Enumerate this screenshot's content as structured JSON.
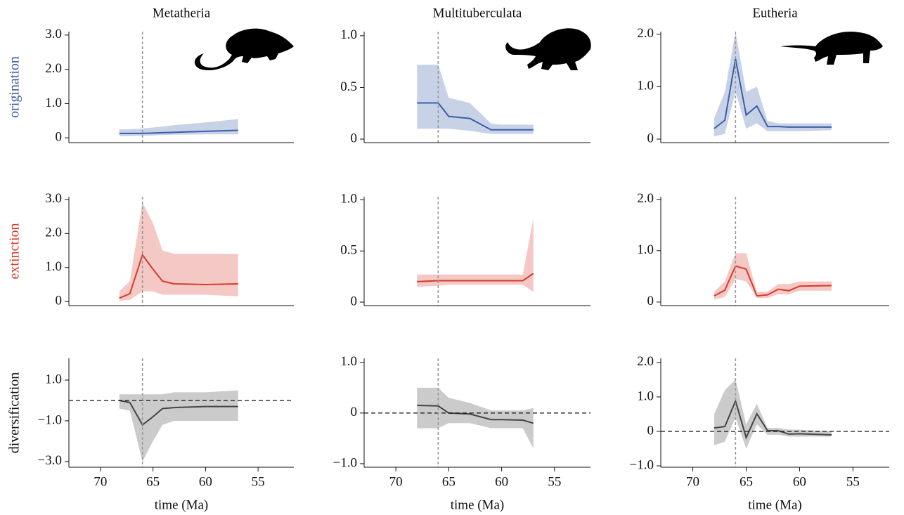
{
  "chart_data": [
    {
      "type": "line",
      "title": "Metatheria",
      "ylabel": "origination",
      "color": "#3b5ea8",
      "x": [
        68.2,
        67.2,
        66.0,
        65.0,
        64.1,
        63.0,
        60.0,
        56.9
      ],
      "values": [
        0.13,
        0.13,
        0.13,
        0.14,
        0.15,
        0.16,
        0.19,
        0.22
      ],
      "lower": [
        0.05,
        0.05,
        0.06,
        0.07,
        0.08,
        0.09,
        0.1,
        0.1
      ],
      "upper": [
        0.25,
        0.25,
        0.27,
        0.3,
        0.33,
        0.37,
        0.45,
        0.55
      ],
      "xlim": [
        73,
        51.6
      ],
      "ylim": [
        -0.14,
        3.1
      ],
      "yticks": [
        0,
        {
          "value": 1,
          "label": "1.0"
        },
        {
          "value": 2,
          "label": "2.0"
        },
        {
          "value": 3,
          "label": "3.0"
        }
      ],
      "vline": 66
    },
    {
      "type": "line",
      "title": "Multituberculata",
      "color": "#3b5ea8",
      "x": [
        68,
        66,
        65,
        63,
        61,
        60,
        58,
        57
      ],
      "values": [
        0.35,
        0.35,
        0.22,
        0.2,
        0.09,
        0.09,
        0.09,
        0.09
      ],
      "lower": [
        0.1,
        0.1,
        0.1,
        0.08,
        0.05,
        0.05,
        0.05,
        0.05
      ],
      "upper": [
        0.72,
        0.72,
        0.4,
        0.35,
        0.15,
        0.14,
        0.14,
        0.14
      ],
      "xlim": [
        73,
        51.6
      ],
      "ylim": [
        -0.034,
        1.04
      ],
      "yticks": [
        0,
        0.5,
        {
          "value": 1,
          "label": "1.0"
        }
      ],
      "vline": 66
    },
    {
      "type": "line",
      "title": "Eutheria",
      "color": "#3b5ea8",
      "x": [
        68,
        67,
        66,
        65,
        64,
        63,
        62,
        61,
        60,
        57
      ],
      "values": [
        0.2,
        0.36,
        1.53,
        0.46,
        0.63,
        0.24,
        0.24,
        0.23,
        0.23,
        0.23
      ],
      "lower": [
        0.05,
        0.1,
        0.9,
        0.2,
        0.3,
        0.15,
        0.15,
        0.15,
        0.15,
        0.17
      ],
      "upper": [
        0.4,
        0.9,
        2.05,
        0.9,
        1.0,
        0.35,
        0.3,
        0.3,
        0.3,
        0.3
      ],
      "xlim": [
        73,
        51.6
      ],
      "ylim": [
        -0.067,
        2.05
      ],
      "yticks": [
        0,
        {
          "value": 1,
          "label": "1.0"
        },
        {
          "value": 2,
          "label": "2.0"
        }
      ],
      "vline": 66
    },
    {
      "type": "line",
      "ylabel": "extinction",
      "color": "#d73a2a",
      "x": [
        68.2,
        67.2,
        66.0,
        65.0,
        64.1,
        63.0,
        60.0,
        56.9
      ],
      "values": [
        0.1,
        0.23,
        1.37,
        0.95,
        0.6,
        0.52,
        0.5,
        0.52
      ],
      "lower": [
        0.02,
        0.05,
        0.3,
        0.3,
        0.2,
        0.2,
        0.2,
        0.15
      ],
      "upper": [
        0.3,
        0.6,
        2.9,
        2.3,
        1.5,
        1.4,
        1.4,
        1.4
      ],
      "xlim": [
        73,
        51.6
      ],
      "ylim": [
        -0.12,
        3.08
      ],
      "yticks": [
        0,
        {
          "value": 1,
          "label": "1.0"
        },
        {
          "value": 2,
          "label": "2.0"
        },
        {
          "value": 3,
          "label": "3.0"
        }
      ],
      "vline": 66
    },
    {
      "type": "line",
      "color": "#d73a2a",
      "x": [
        68,
        66,
        65,
        63,
        61,
        60,
        58,
        57
      ],
      "values": [
        0.2,
        0.21,
        0.21,
        0.21,
        0.21,
        0.21,
        0.21,
        0.28
      ],
      "lower": [
        0.15,
        0.16,
        0.17,
        0.17,
        0.17,
        0.17,
        0.17,
        0.1
      ],
      "upper": [
        0.27,
        0.27,
        0.27,
        0.27,
        0.27,
        0.27,
        0.27,
        0.82
      ],
      "xlim": [
        73,
        51.6
      ],
      "ylim": [
        -0.034,
        1.03
      ],
      "yticks": [
        0,
        0.5,
        {
          "value": 1,
          "label": "1.0"
        }
      ],
      "vline": 66
    },
    {
      "type": "line",
      "color": "#d73a2a",
      "x": [
        68,
        67,
        66,
        65,
        64,
        63,
        62,
        61,
        60,
        57
      ],
      "values": [
        0.12,
        0.23,
        0.7,
        0.64,
        0.12,
        0.14,
        0.25,
        0.22,
        0.31,
        0.32
      ],
      "lower": [
        0.05,
        0.1,
        0.45,
        0.4,
        0.08,
        0.08,
        0.15,
        0.15,
        0.22,
        0.22
      ],
      "upper": [
        0.2,
        0.4,
        0.95,
        0.95,
        0.2,
        0.2,
        0.35,
        0.35,
        0.4,
        0.4
      ],
      "xlim": [
        73,
        51.6
      ],
      "ylim": [
        -0.07,
        2.05
      ],
      "yticks": [
        0,
        {
          "value": 1,
          "label": "1.0"
        },
        {
          "value": 2,
          "label": "2.0"
        }
      ],
      "vline": 66
    },
    {
      "type": "line",
      "ylabel": "diversification",
      "xlabel": "time (Ma)",
      "color": "#444444",
      "x": [
        68.2,
        67.2,
        66.0,
        65.0,
        64.1,
        63.0,
        60.0,
        56.9
      ],
      "values": [
        0,
        -0.1,
        -1.2,
        -0.8,
        -0.4,
        -0.35,
        -0.3,
        -0.3
      ],
      "lower": [
        -0.4,
        -0.5,
        -3.0,
        -2.0,
        -1.2,
        -1.0,
        -1.0,
        -1.0
      ],
      "upper": [
        0.3,
        0.3,
        0.3,
        0.3,
        0.3,
        0.4,
        0.4,
        0.5
      ],
      "xlim": [
        73,
        51.6
      ],
      "ylim": [
        -3.28,
        2.07
      ],
      "xticks": [
        70,
        65,
        60,
        55
      ],
      "yticks": [
        {
          "value": 1,
          "label": "1.0"
        },
        {
          "value": -1,
          "label": "−1.0"
        },
        {
          "value": -3,
          "label": "−3.0"
        }
      ],
      "vline": 66,
      "hline": 0
    },
    {
      "type": "line",
      "xlabel": "time (Ma)",
      "color": "#444444",
      "x": [
        68,
        66,
        65,
        63,
        61,
        60,
        58,
        57
      ],
      "values": [
        0.15,
        0.14,
        0,
        -0.02,
        -0.13,
        -0.13,
        -0.14,
        -0.2
      ],
      "lower": [
        -0.3,
        -0.3,
        -0.2,
        -0.2,
        -0.3,
        -0.3,
        -0.3,
        -0.7
      ],
      "upper": [
        0.5,
        0.5,
        0.3,
        0.2,
        0.05,
        0.05,
        0.05,
        0.1
      ],
      "xlim": [
        73,
        51.6
      ],
      "ylim": [
        -1.07,
        1.08
      ],
      "xticks": [
        70,
        65,
        60,
        55
      ],
      "yticks": [
        {
          "value": -1,
          "label": "−1.0"
        },
        0,
        {
          "value": 1,
          "label": "1.0"
        }
      ],
      "vline": 66,
      "hline": 0
    },
    {
      "type": "line",
      "xlabel": "time (Ma)",
      "color": "#444444",
      "x": [
        68,
        67,
        66,
        65,
        64,
        63,
        62,
        61,
        60,
        57
      ],
      "values": [
        0.1,
        0.14,
        0.88,
        -0.18,
        0.51,
        0.02,
        0.02,
        -0.08,
        -0.07,
        -0.1
      ],
      "lower": [
        -0.4,
        -0.3,
        0.4,
        -0.5,
        0.2,
        -0.1,
        -0.1,
        -0.15,
        -0.15,
        -0.15
      ],
      "upper": [
        0.5,
        1.2,
        1.5,
        0.2,
        0.8,
        0.1,
        0.1,
        0.05,
        0.05,
        0.0
      ],
      "xlim": [
        73,
        51.6
      ],
      "ylim": [
        -1.04,
        2.12
      ],
      "xticks": [
        70,
        65,
        60,
        55
      ],
      "yticks": [
        {
          "value": -1,
          "label": "−1.0"
        },
        0,
        {
          "value": 1,
          "label": "1.0"
        },
        {
          "value": 2,
          "label": "2.0"
        }
      ],
      "vline": 66,
      "hline": 0
    }
  ]
}
